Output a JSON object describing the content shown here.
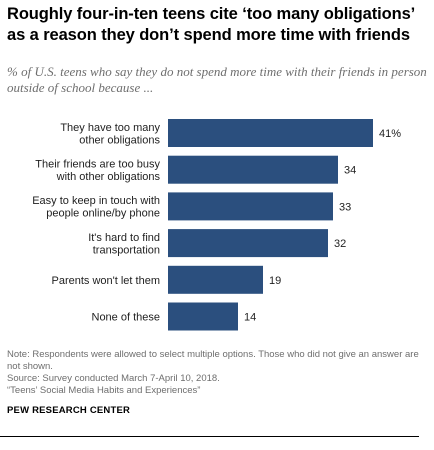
{
  "title": "Roughly four-in-ten teens cite ‘too many obligations’ as a reason they don’t spend more time with friends",
  "subtitle": "% of U.S. teens who say they do not spend more time with their friends in person outside of school because ...",
  "notes": {
    "note": "Note: Respondents were allowed to select multiple options. Those who did not give an answer are not shown.",
    "source": "Source: Survey conducted March 7-April 10, 2018.",
    "report": "“Teens’ Social Media Habits and Experiences”"
  },
  "organization": "PEW RESEARCH CENTER",
  "colors": {
    "bar": "#2b4f7e"
  },
  "chart_data": {
    "type": "bar",
    "orientation": "horizontal",
    "categories": [
      [
        "They have too many",
        "other obligations"
      ],
      [
        "Their friends are too busy",
        "with other obligations"
      ],
      [
        "Easy to keep in touch with",
        "people online/by phone"
      ],
      [
        "It's hard to find",
        "transportation"
      ],
      [
        "Parents won't let them"
      ],
      [
        "None of these"
      ]
    ],
    "values": [
      41,
      34,
      33,
      32,
      19,
      14
    ],
    "value_labels": [
      "41%",
      "34",
      "33",
      "32",
      "19",
      "14"
    ],
    "xlim": [
      0,
      41
    ],
    "grid": false,
    "legend": "none"
  }
}
